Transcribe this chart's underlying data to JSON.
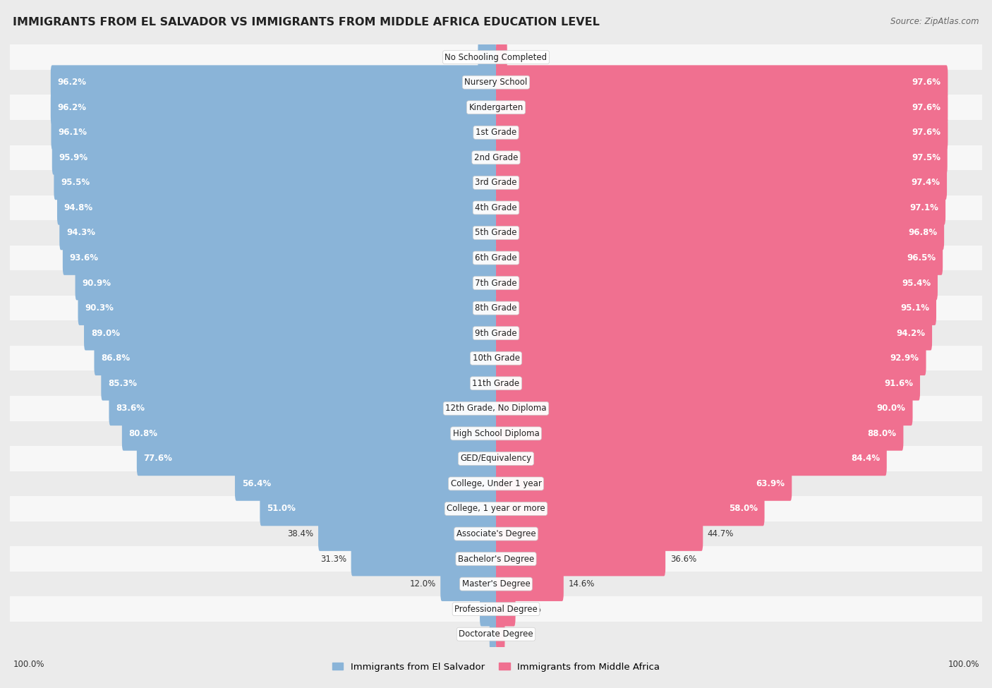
{
  "title": "IMMIGRANTS FROM EL SALVADOR VS IMMIGRANTS FROM MIDDLE AFRICA EDUCATION LEVEL",
  "source": "Source: ZipAtlas.com",
  "categories": [
    "No Schooling Completed",
    "Nursery School",
    "Kindergarten",
    "1st Grade",
    "2nd Grade",
    "3rd Grade",
    "4th Grade",
    "5th Grade",
    "6th Grade",
    "7th Grade",
    "8th Grade",
    "9th Grade",
    "10th Grade",
    "11th Grade",
    "12th Grade, No Diploma",
    "High School Diploma",
    "GED/Equivalency",
    "College, Under 1 year",
    "College, 1 year or more",
    "Associate's Degree",
    "Bachelor's Degree",
    "Master's Degree",
    "Professional Degree",
    "Doctorate Degree"
  ],
  "el_salvador": [
    3.9,
    96.2,
    96.2,
    96.1,
    95.9,
    95.5,
    94.8,
    94.3,
    93.6,
    90.9,
    90.3,
    89.0,
    86.8,
    85.3,
    83.6,
    80.8,
    77.6,
    56.4,
    51.0,
    38.4,
    31.3,
    12.0,
    3.5,
    1.4
  ],
  "middle_africa": [
    2.4,
    97.6,
    97.6,
    97.6,
    97.5,
    97.4,
    97.1,
    96.8,
    96.5,
    95.4,
    95.1,
    94.2,
    92.9,
    91.6,
    90.0,
    88.0,
    84.4,
    63.9,
    58.0,
    44.7,
    36.6,
    14.6,
    4.2,
    1.9
  ],
  "color_el_salvador": "#8ab4d8",
  "color_middle_africa": "#f07090",
  "bg_color": "#ebebeb",
  "row_bg_light": "#f7f7f7",
  "row_bg_dark": "#ebebeb",
  "label_fontsize": 8.5,
  "title_fontsize": 11.5,
  "legend_fontsize": 9.5
}
